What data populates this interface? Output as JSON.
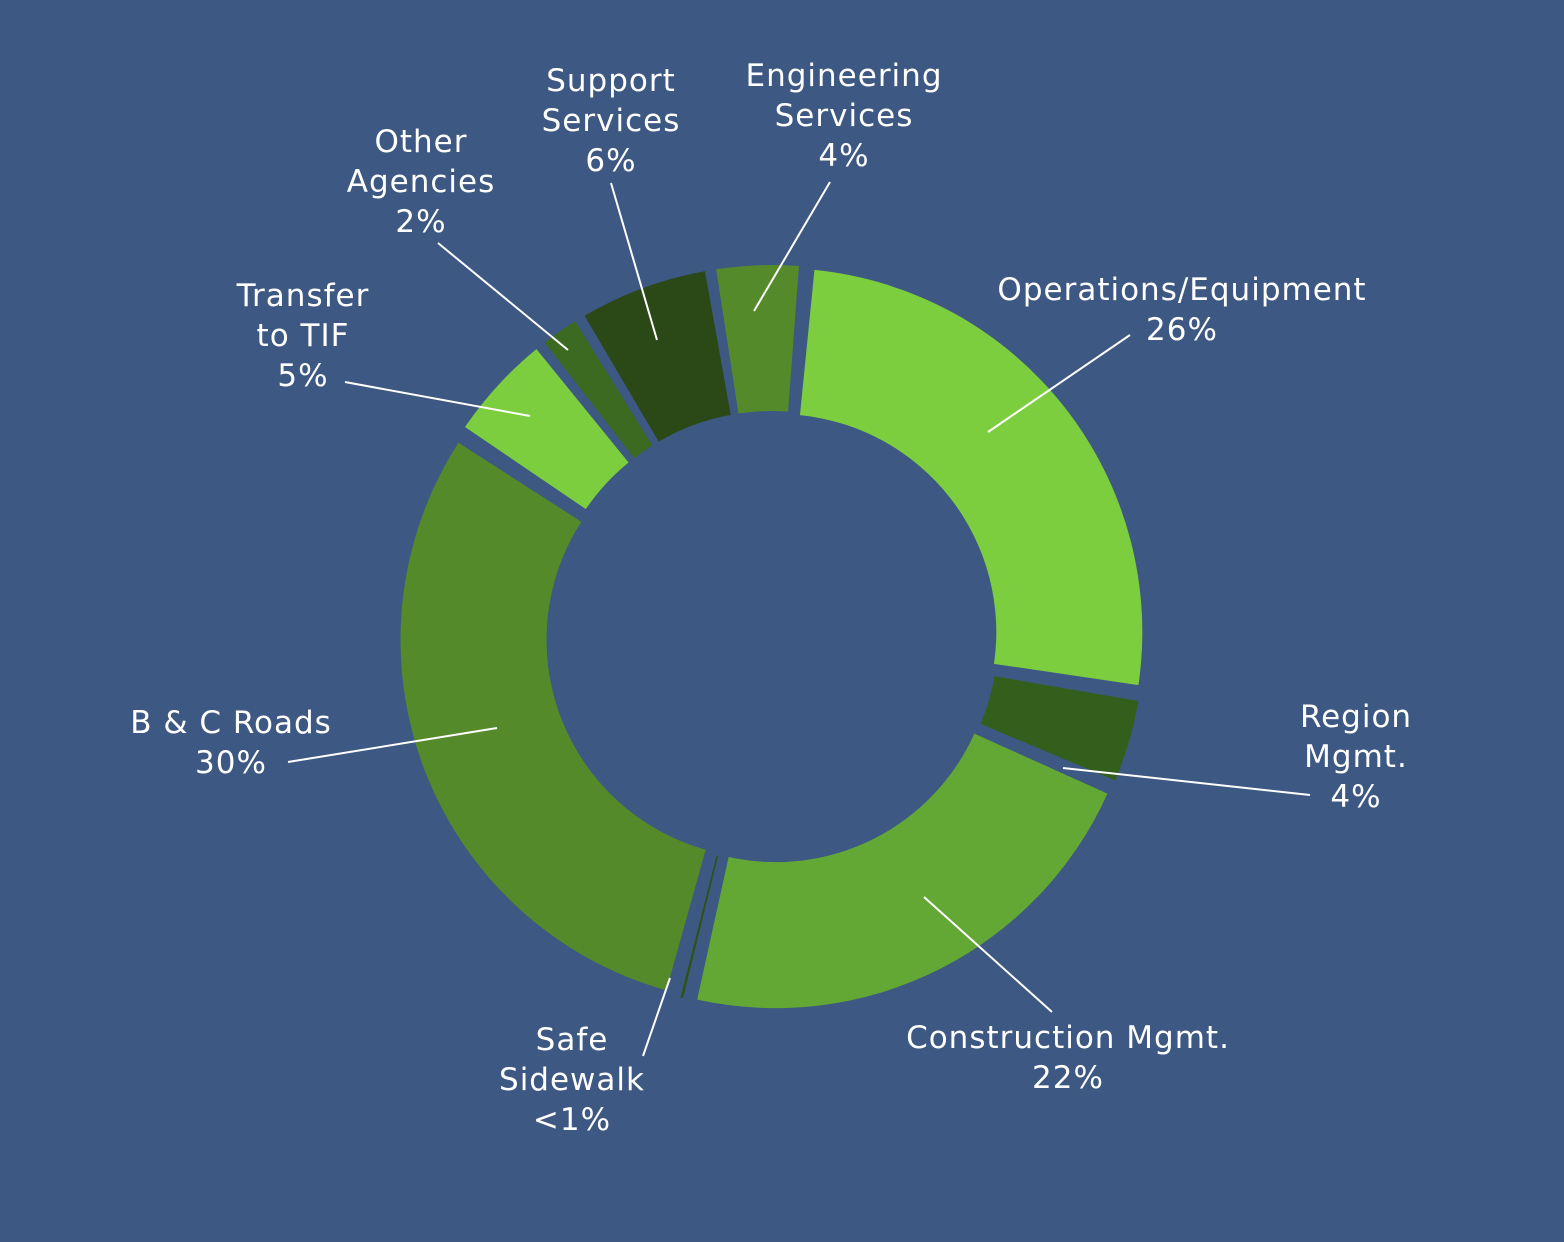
{
  "colors": {
    "background": "#3d5882",
    "text": "#ffffff",
    "leader": "#ffffff"
  },
  "chart_data": {
    "type": "pie",
    "variant": "donut-exploded",
    "title": "",
    "start_angle_deg": 5,
    "slices": [
      {
        "id": "operations-equipment",
        "lines": [
          "Operations/Equipment"
        ],
        "pct_text": "26%",
        "value": 26,
        "color": "#7dce3f"
      },
      {
        "id": "region-mgmt",
        "lines": [
          "Region",
          "Mgmt."
        ],
        "pct_text": "4%",
        "value": 4,
        "color": "#345e1c"
      },
      {
        "id": "construction-mgmt",
        "lines": [
          "Construction Mgmt."
        ],
        "pct_text": "22%",
        "value": 22,
        "color": "#63a735"
      },
      {
        "id": "safe-sidewalk",
        "lines": [
          "Safe",
          "Sidewalk"
        ],
        "pct_text": "<1%",
        "value": 0.5,
        "color": "#2e5217"
      },
      {
        "id": "b-c-roads",
        "lines": [
          "B & C Roads"
        ],
        "pct_text": "30%",
        "value": 30,
        "color": "#558a2b"
      },
      {
        "id": "transfer-to-tif",
        "lines": [
          "Transfer",
          "to TIF"
        ],
        "pct_text": "5%",
        "value": 5,
        "color": "#7dce3f"
      },
      {
        "id": "other-agencies",
        "lines": [
          "Other",
          "Agencies"
        ],
        "pct_text": "2%",
        "value": 2,
        "color": "#3b6a20"
      },
      {
        "id": "support-services",
        "lines": [
          "Support",
          "Services"
        ],
        "pct_text": "6%",
        "value": 6,
        "color": "#2a4916"
      },
      {
        "id": "engineering-services",
        "lines": [
          "Engineering",
          "Services"
        ],
        "pct_text": "4%",
        "value": 4,
        "color": "#558a2b"
      }
    ]
  }
}
